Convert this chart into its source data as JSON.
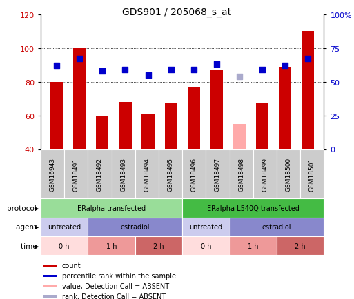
{
  "title": "GDS901 / 205068_s_at",
  "samples": [
    "GSM16943",
    "GSM18491",
    "GSM18492",
    "GSM18493",
    "GSM18494",
    "GSM18495",
    "GSM18496",
    "GSM18497",
    "GSM18498",
    "GSM18499",
    "GSM18500",
    "GSM18501"
  ],
  "count_values": [
    80,
    100,
    60,
    68,
    61,
    67,
    77,
    87,
    55,
    67,
    89,
    110
  ],
  "count_absent": [
    false,
    false,
    false,
    false,
    false,
    false,
    false,
    false,
    true,
    false,
    false,
    false
  ],
  "rank_values": [
    62,
    67,
    58,
    59,
    55,
    59,
    59,
    63,
    54,
    59,
    62,
    67
  ],
  "rank_absent": [
    false,
    false,
    false,
    false,
    false,
    false,
    false,
    false,
    true,
    false,
    false,
    false
  ],
  "count_color": "#cc0000",
  "count_absent_color": "#ffaaaa",
  "rank_color": "#0000cc",
  "rank_absent_color": "#aaaacc",
  "ylim_left": [
    40,
    120
  ],
  "ylim_right": [
    0,
    100
  ],
  "yticks_left": [
    40,
    60,
    80,
    100,
    120
  ],
  "yticks_right": [
    0,
    25,
    50,
    75,
    100
  ],
  "yticklabels_right": [
    "0",
    "25",
    "50",
    "75",
    "100%"
  ],
  "protocol_row": {
    "label": "protocol",
    "segments": [
      {
        "text": "ERalpha transfected",
        "start": 0,
        "end": 6,
        "color": "#99dd99"
      },
      {
        "text": "ERalpha L540Q transfected",
        "start": 6,
        "end": 12,
        "color": "#44bb44"
      }
    ]
  },
  "agent_row": {
    "label": "agent",
    "segments": [
      {
        "text": "untreated",
        "start": 0,
        "end": 2,
        "color": "#ccccee"
      },
      {
        "text": "estradiol",
        "start": 2,
        "end": 6,
        "color": "#8888cc"
      },
      {
        "text": "untreated",
        "start": 6,
        "end": 8,
        "color": "#ccccee"
      },
      {
        "text": "estradiol",
        "start": 8,
        "end": 12,
        "color": "#8888cc"
      }
    ]
  },
  "time_row": {
    "label": "time",
    "segments": [
      {
        "text": "0 h",
        "start": 0,
        "end": 2,
        "color": "#ffdddd"
      },
      {
        "text": "1 h",
        "start": 2,
        "end": 4,
        "color": "#ee9999"
      },
      {
        "text": "2 h",
        "start": 4,
        "end": 6,
        "color": "#cc6666"
      },
      {
        "text": "0 h",
        "start": 6,
        "end": 8,
        "color": "#ffdddd"
      },
      {
        "text": "1 h",
        "start": 8,
        "end": 10,
        "color": "#ee9999"
      },
      {
        "text": "2 h",
        "start": 10,
        "end": 12,
        "color": "#cc6666"
      }
    ]
  },
  "legend_items": [
    {
      "label": "count",
      "color": "#cc0000"
    },
    {
      "label": "percentile rank within the sample",
      "color": "#0000cc"
    },
    {
      "label": "value, Detection Call = ABSENT",
      "color": "#ffaaaa"
    },
    {
      "label": "rank, Detection Call = ABSENT",
      "color": "#aaaacc"
    }
  ],
  "bg_color": "#ffffff",
  "plot_bg": "#ffffff",
  "left_label_color": "#cc0000",
  "right_label_color": "#0000cc",
  "bar_width": 0.55,
  "dot_size": 40
}
